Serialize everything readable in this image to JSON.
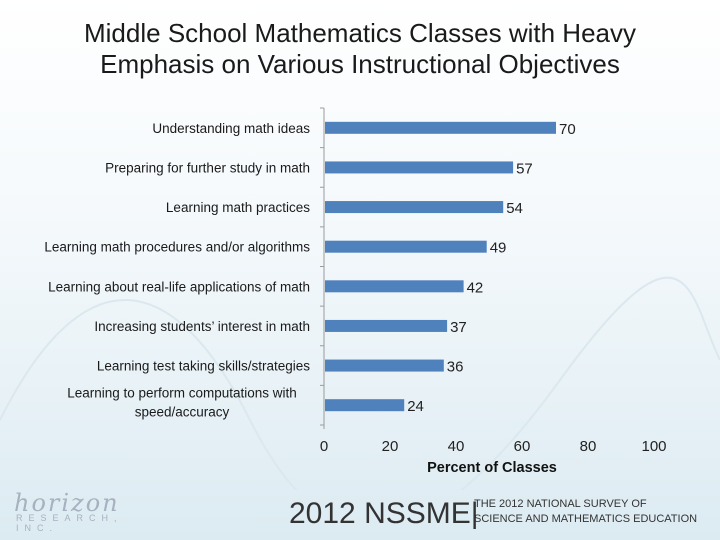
{
  "title_line1": "Middle School Mathematics Classes with Heavy",
  "title_line2": "Emphasis on Various Instructional Objectives",
  "footer": {
    "year_label": "2012 NSSME|",
    "subtitle_line1": "THE 2012 NATIONAL SURVEY OF",
    "subtitle_line2": "SCIENCE AND MATHEMATICS EDUCATION",
    "logo_text": "horizon",
    "logo_subtext": "RESEARCH, INC."
  },
  "colors": {
    "bar": "#4f81bd",
    "axis": "#9a9a9a"
  },
  "chart_data": {
    "type": "bar",
    "orientation": "horizontal",
    "categories": [
      [
        "Understanding math ideas"
      ],
      [
        "Preparing for further study in math"
      ],
      [
        "Learning math practices"
      ],
      [
        "Learning math procedures and/or algorithms"
      ],
      [
        "Learning about real-life applications of math"
      ],
      [
        "Increasing students’ interest in math"
      ],
      [
        "Learning test taking skills/strategies"
      ],
      [
        "Learning to perform computations with",
        "speed/accuracy"
      ]
    ],
    "values": [
      70,
      57,
      54,
      49,
      42,
      37,
      36,
      24
    ],
    "xlabel": "Percent of Classes",
    "xlim": [
      0,
      100
    ],
    "xticks": [
      0,
      20,
      40,
      60,
      80,
      100
    ],
    "grid": false,
    "legend": "none"
  }
}
